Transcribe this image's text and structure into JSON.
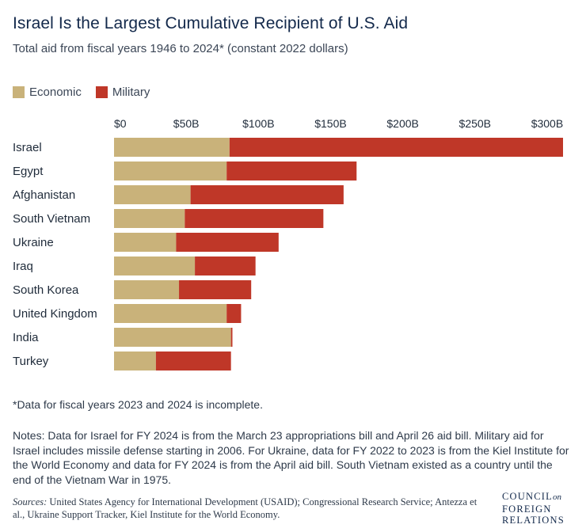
{
  "title": "Israel Is the Largest Cumulative Recipient of U.S. Aid",
  "subtitle": "Total aid from fiscal years 1946 to 2024* (constant 2022 dollars)",
  "legend": [
    {
      "label": "Economic",
      "color": "#c9b27a"
    },
    {
      "label": "Military",
      "color": "#bf3728"
    }
  ],
  "footnote": "*Data for fiscal years 2023 and 2024 is incomplete.",
  "notes": "Notes: Data for Israel for FY 2024 is from the March 23 appropriations bill and April 26 aid bill. Military aid for Israel includes missile defense starting in 2006. For Ukraine, data for FY 2022 to 2023 is from the Kiel Institute for the World Economy and data for FY 2024 is from the April aid bill. South Vietnam existed as a country until the end of the Vietnam War in 1975.",
  "sources": {
    "label": "Sources:",
    "text": " United States Agency for International Development (USAID); Congressional Research Service; Antezza et al., Ukraine Support Tracker, Kiel Institute for the World Economy."
  },
  "logo": {
    "line1": "COUNCIL",
    "line1_suffix": "on",
    "line2": "FOREIGN",
    "line3": "RELATIONS"
  },
  "chart_data": {
    "type": "bar",
    "orientation": "horizontal",
    "stacked": true,
    "categories": [
      "Israel",
      "Egypt",
      "Afghanistan",
      "South Vietnam",
      "Ukraine",
      "Iraq",
      "South Korea",
      "United Kingdom",
      "India",
      "Turkey"
    ],
    "series": [
      {
        "name": "Economic",
        "color": "#c9b27a",
        "values": [
          80,
          78,
          53,
          49,
          43,
          56,
          45,
          78,
          81,
          29
        ]
      },
      {
        "name": "Military",
        "color": "#bf3728",
        "values": [
          231,
          90,
          106,
          96,
          71,
          42,
          50,
          10,
          1,
          52
        ]
      }
    ],
    "xticks": [
      "$0",
      "$50B",
      "$100B",
      "$150B",
      "$200B",
      "$250B",
      "$300B"
    ],
    "tick_values": [
      0,
      50,
      100,
      150,
      200,
      250,
      300
    ],
    "xlim": [
      0,
      311
    ],
    "unit": "billions of constant 2022 dollars",
    "grid": false,
    "legend_position": "top-left"
  }
}
